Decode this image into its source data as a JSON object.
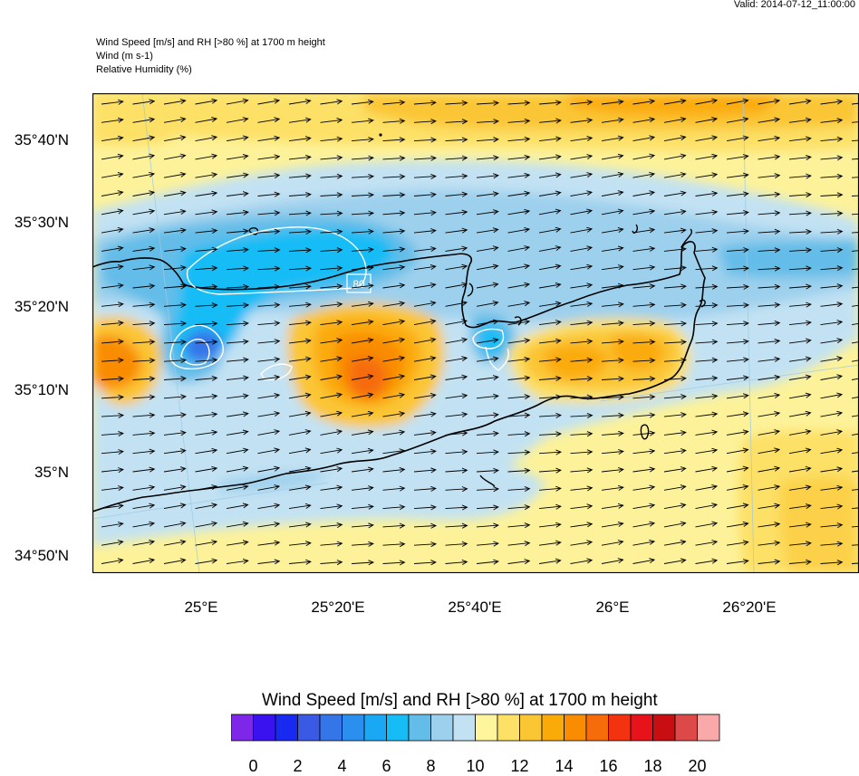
{
  "header": {
    "valid_time": "Valid: 2014-07-12_11:00:00",
    "title_line1": "Wind Speed [m/s] and RH [>80 %] at 1700 m height",
    "title_line2": "Wind   (m s-1)",
    "title_line3": "Relative Humidity   (%)"
  },
  "map": {
    "lat_labels": [
      "35°40'N",
      "35°30'N",
      "35°20'N",
      "35°10'N",
      "35°N",
      "34°50'N"
    ],
    "lon_labels": [
      "25°E",
      "25°20'E",
      "25°40'E",
      "26°E",
      "26°20'E"
    ],
    "contour_label": "80",
    "colors": {
      "coast": "#000000",
      "rh_contour": "#ffffff",
      "frame": "#000000",
      "grid": "#9ecae1"
    }
  },
  "colorbar": {
    "title": "Wind Speed [m/s] and RH [>80 %] at 1700 m height",
    "tick_labels": [
      "0",
      "2",
      "4",
      "6",
      "8",
      "10",
      "12",
      "14",
      "16",
      "18",
      "20"
    ],
    "colors": [
      "#7f27e8",
      "#3a12f0",
      "#1829f0",
      "#3a5ae6",
      "#3475e8",
      "#2b8ff0",
      "#1aa8f5",
      "#15bcf5",
      "#63bde8",
      "#9dd0ed",
      "#c2e2f3",
      "#fff59d",
      "#fde066",
      "#fbc634",
      "#fbab08",
      "#f98c00",
      "#f66c0a",
      "#f33310",
      "#e7121a",
      "#c80e10",
      "#dd4848",
      "#f9a9a9"
    ]
  }
}
